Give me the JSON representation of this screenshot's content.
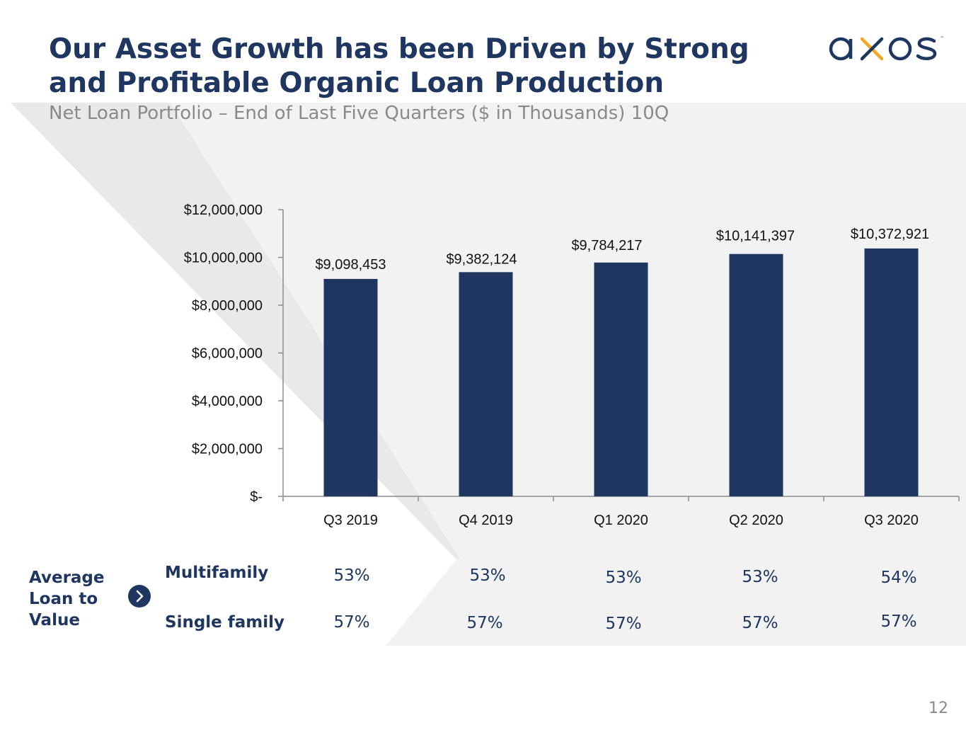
{
  "header": {
    "title": "Our Asset Growth has been Driven by Strong and Profitable Organic Loan Production",
    "subtitle": "Net Loan Portfolio – End of Last Five Quarters ($ in Thousands) 10Q"
  },
  "logo": {
    "text": "axos",
    "trademark": "™",
    "colors": {
      "text": "#1f3660",
      "accent": "#f5a623"
    }
  },
  "chart_data": {
    "type": "bar",
    "categories": [
      "Q3 2019",
      "Q4 2019",
      "Q1 2020",
      "Q2 2020",
      "Q3 2020"
    ],
    "values": [
      9098453,
      9382124,
      9784217,
      10141397,
      10372921
    ],
    "data_labels": [
      "$9,098,453",
      "$9,382,124",
      "$9,784,217",
      "$10,141,397",
      "$10,372,921"
    ],
    "yticks": [
      0,
      2000000,
      4000000,
      6000000,
      8000000,
      10000000,
      12000000
    ],
    "ytick_labels": [
      "$-",
      "$2,000,000",
      "$4,000,000",
      "$6,000,000",
      "$8,000,000",
      "$10,000,000",
      "$12,000,000"
    ],
    "ylim": [
      0,
      12000000
    ],
    "grid": false,
    "bar_color": "#1f3660"
  },
  "ltv": {
    "heading": "Average Loan to Value",
    "arrow_icon": "chevron-right-icon",
    "rows": [
      {
        "label": "Multifamily",
        "values": [
          "53%",
          "53%",
          "53%",
          "53%",
          "54%"
        ]
      },
      {
        "label": "Single family",
        "values": [
          "57%",
          "57%",
          "57%",
          "57%",
          "57%"
        ]
      }
    ]
  },
  "footer": {
    "page_number": "12"
  },
  "colors": {
    "navy": "#1f3660",
    "band": "#f2f2f2",
    "band_dark": "#e6e6e6"
  }
}
